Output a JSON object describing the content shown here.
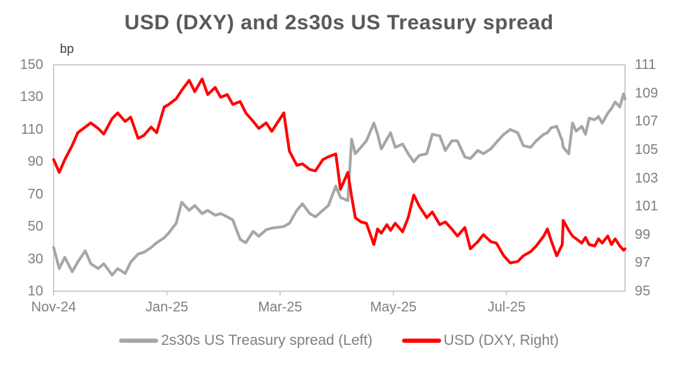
{
  "title": "USD (DXY) and 2s30s US Treasury spread",
  "left_axis": {
    "unit": "bp",
    "ticks": [
      150,
      130,
      110,
      90,
      70,
      50,
      30,
      10
    ],
    "min": 10,
    "max": 150
  },
  "right_axis": {
    "ticks": [
      111,
      109,
      107,
      105,
      103,
      101,
      99,
      97,
      95
    ],
    "min": 95,
    "max": 111
  },
  "x_axis": {
    "ticks": [
      {
        "label": "Nov-24",
        "month_offset": 0
      },
      {
        "label": "Jan-25",
        "month_offset": 2
      },
      {
        "label": "Mar-25",
        "month_offset": 4
      },
      {
        "label": "May-25",
        "month_offset": 6
      },
      {
        "label": "Jul-25",
        "month_offset": 8
      }
    ]
  },
  "legend": [
    {
      "label": "2s30s US Treasury spread (Left)",
      "color": "#a6a6a6"
    },
    {
      "label": "USD (DXY, Right)",
      "color": "#ff0000"
    }
  ],
  "colors": {
    "title": "#595959",
    "axis_text": "#7f7f7f",
    "plot_border": "#bfbfbf",
    "spread_line": "#a6a6a6",
    "dxy_line": "#ff0000",
    "background": "#ffffff"
  },
  "chart_data": {
    "type": "line",
    "title": "USD (DXY) and 2s30s US Treasury spread",
    "x_tick_labels": [
      "Nov-24",
      "Jan-25",
      "Mar-25",
      "May-25",
      "Jul-25"
    ],
    "left_ylabel": "bp",
    "left_ylim": [
      10,
      150
    ],
    "right_ylim": [
      95,
      111
    ],
    "grid": false,
    "legend_position": "bottom",
    "x": [
      "2024-11-01",
      "2024-11-04",
      "2024-11-07",
      "2024-11-11",
      "2024-11-14",
      "2024-11-18",
      "2024-11-21",
      "2024-11-25",
      "2024-11-28",
      "2024-12-02",
      "2024-12-05",
      "2024-12-09",
      "2024-12-12",
      "2024-12-16",
      "2024-12-19",
      "2024-12-23",
      "2024-12-26",
      "2024-12-30",
      "2025-01-02",
      "2025-01-06",
      "2025-01-09",
      "2025-01-13",
      "2025-01-16",
      "2025-01-20",
      "2025-01-23",
      "2025-01-27",
      "2025-01-30",
      "2025-02-03",
      "2025-02-06",
      "2025-02-10",
      "2025-02-13",
      "2025-02-17",
      "2025-02-20",
      "2025-02-24",
      "2025-02-27",
      "2025-03-03",
      "2025-03-06",
      "2025-03-10",
      "2025-03-13",
      "2025-03-17",
      "2025-03-20",
      "2025-03-24",
      "2025-03-27",
      "2025-03-31",
      "2025-04-03",
      "2025-04-07",
      "2025-04-09",
      "2025-04-11",
      "2025-04-14",
      "2025-04-17",
      "2025-04-21",
      "2025-04-23",
      "2025-04-25",
      "2025-04-28",
      "2025-04-30",
      "2025-05-02",
      "2025-05-06",
      "2025-05-09",
      "2025-05-12",
      "2025-05-15",
      "2025-05-19",
      "2025-05-22",
      "2025-05-26",
      "2025-05-29",
      "2025-06-02",
      "2025-06-05",
      "2025-06-09",
      "2025-06-12",
      "2025-06-16",
      "2025-06-19",
      "2025-06-23",
      "2025-06-26",
      "2025-06-30",
      "2025-07-03",
      "2025-07-07",
      "2025-07-10",
      "2025-07-14",
      "2025-07-17",
      "2025-07-21",
      "2025-07-23",
      "2025-07-25",
      "2025-07-28",
      "2025-07-31",
      "2025-08-01",
      "2025-08-04",
      "2025-08-06",
      "2025-08-08",
      "2025-08-11",
      "2025-08-13",
      "2025-08-15",
      "2025-08-18",
      "2025-08-20",
      "2025-08-22",
      "2025-08-25",
      "2025-08-27",
      "2025-08-29",
      "2025-09-01",
      "2025-09-03",
      "2025-09-04"
    ],
    "series": [
      {
        "name": "2s30s US Treasury spread (Left)",
        "axis": "left",
        "unit": "bp",
        "color": "#a6a6a6",
        "values": [
          37,
          24,
          31,
          22,
          28,
          35,
          27,
          24,
          27,
          20,
          24,
          21,
          28,
          33,
          34,
          37,
          40,
          43,
          46,
          52,
          65,
          60,
          63,
          58,
          60,
          57,
          58,
          56,
          54,
          42,
          40,
          47,
          44,
          48,
          49,
          50,
          52,
          60,
          64,
          58,
          56,
          60,
          63,
          75,
          68,
          66,
          104,
          95,
          99,
          103,
          114,
          107,
          98,
          104,
          108,
          99,
          101,
          95,
          90,
          94,
          95,
          107,
          106,
          97,
          103,
          103,
          93,
          92,
          97,
          95,
          98,
          102,
          107,
          110,
          108,
          100,
          99,
          103,
          107,
          108,
          111,
          112,
          103,
          99,
          95,
          114,
          109,
          112,
          107,
          117,
          116,
          118,
          114,
          120,
          123,
          127,
          124,
          132,
          129
        ]
      },
      {
        "name": "USD (DXY, Right)",
        "axis": "right",
        "color": "#ff0000",
        "values": [
          104.3,
          103.4,
          104.3,
          105.3,
          106.2,
          106.6,
          106.9,
          106.5,
          106.1,
          107.2,
          107.6,
          107.0,
          107.3,
          105.8,
          106.0,
          106.6,
          106.2,
          108.0,
          108.2,
          108.6,
          109.2,
          109.9,
          109.1,
          110.0,
          108.9,
          109.4,
          108.7,
          108.9,
          108.2,
          108.4,
          107.6,
          107.0,
          106.5,
          106.9,
          106.3,
          107.6,
          104.9,
          103.9,
          104.0,
          103.6,
          103.5,
          104.3,
          104.5,
          104.7,
          102.2,
          103.4,
          101.7,
          100.2,
          99.9,
          99.8,
          98.3,
          99.4,
          99.1,
          99.7,
          99.3,
          99.8,
          99.2,
          100.2,
          101.8,
          101.0,
          100.2,
          100.6,
          99.7,
          99.9,
          99.4,
          98.9,
          99.5,
          98.0,
          98.5,
          99.0,
          98.5,
          98.4,
          97.5,
          97.0,
          97.1,
          97.5,
          97.8,
          98.2,
          98.9,
          99.4,
          98.6,
          97.5,
          98.3,
          100.0,
          99.3,
          98.9,
          98.7,
          98.4,
          98.8,
          98.3,
          98.2,
          98.7,
          98.4,
          98.9,
          98.3,
          98.7,
          98.2,
          97.9,
          98.0
        ]
      }
    ]
  }
}
